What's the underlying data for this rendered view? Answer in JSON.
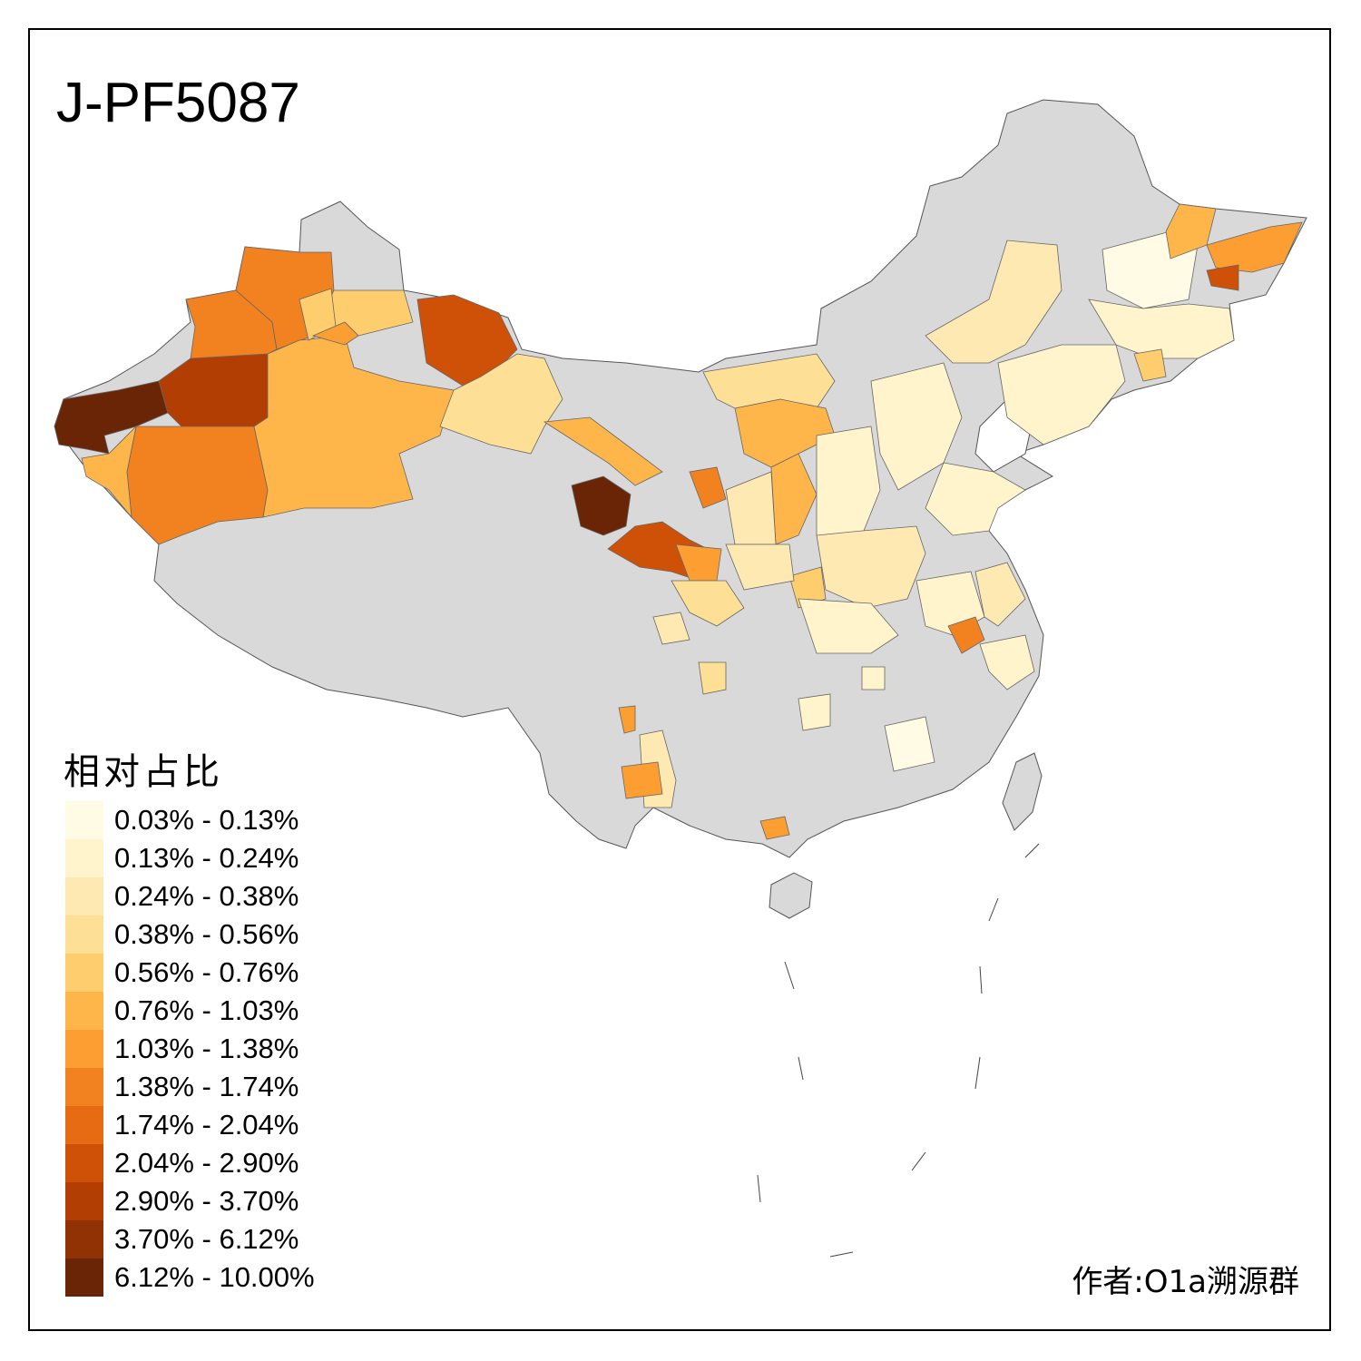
{
  "title": "J-PF5087",
  "legend": {
    "title": "相对占比",
    "items": [
      {
        "label": "0.03% - 0.13%",
        "color": "#fffbe5"
      },
      {
        "label": "0.13% - 0.24%",
        "color": "#fff4cb"
      },
      {
        "label": "0.24% - 0.38%",
        "color": "#fee9b2"
      },
      {
        "label": "0.38% - 0.56%",
        "color": "#fedf96"
      },
      {
        "label": "0.56% - 0.76%",
        "color": "#fecd6d"
      },
      {
        "label": "0.76% - 1.03%",
        "color": "#feb64a"
      },
      {
        "label": "1.03% - 1.38%",
        "color": "#fd9e33"
      },
      {
        "label": "1.38% - 1.74%",
        "color": "#f2821f"
      },
      {
        "label": "1.74% - 2.04%",
        "color": "#e66b13"
      },
      {
        "label": "2.04% - 2.90%",
        "color": "#cf5107"
      },
      {
        "label": "2.90% - 3.70%",
        "color": "#b23e04"
      },
      {
        "label": "3.70% - 6.12%",
        "color": "#913204"
      },
      {
        "label": "6.12% - 10.00%",
        "color": "#6a2507"
      }
    ]
  },
  "credit": "作者:O1a溯源群",
  "colors": {
    "no_data": "#d9d9d9",
    "border": "#555555",
    "frame": "#000000"
  }
}
